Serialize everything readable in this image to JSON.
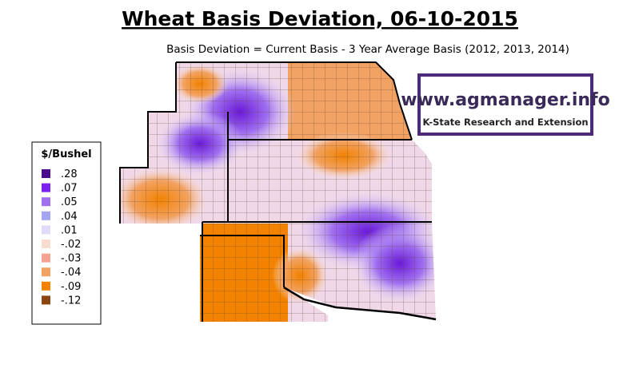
{
  "header": {
    "title": "Wheat Basis Deviation, 06-10-2015",
    "subtitle": "Basis Deviation = Current Basis - 3 Year Average Basis (2012, 2013, 2014)"
  },
  "legend": {
    "title": "$/Bushel",
    "items": [
      {
        "label": ".28",
        "color": "#4b0a8c"
      },
      {
        "label": ".07",
        "color": "#7a22ee"
      },
      {
        "label": ".05",
        "color": "#a070f0"
      },
      {
        "label": ".04",
        "color": "#a4a4f4"
      },
      {
        "label": ".01",
        "color": "#e2dafa"
      },
      {
        "label": "-.02",
        "color": "#f8ddcf"
      },
      {
        "label": "-.03",
        "color": "#f4a292"
      },
      {
        "label": "-.04",
        "color": "#f2a262"
      },
      {
        "label": "-.09",
        "color": "#f28200"
      },
      {
        "label": "-.12",
        "color": "#8b4513"
      }
    ]
  },
  "logo": {
    "url": "www.agmanager.info",
    "tagline": "K-State Research and Extension"
  }
}
